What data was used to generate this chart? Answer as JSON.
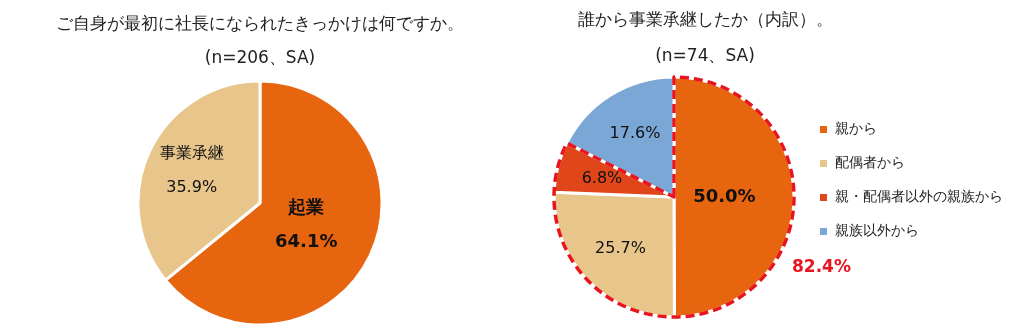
{
  "chart_data": [
    {
      "type": "pie",
      "title": "ご自身が最初に社長になられたきっかけは何ですか。",
      "subtitle": "(n=206、SA)",
      "categories": [
        "起業",
        "事業承継"
      ],
      "values": [
        64.1,
        35.9
      ],
      "colors": [
        "#e8650f",
        "#e8c58a"
      ],
      "value_labels": [
        "64.1%",
        "35.9%"
      ],
      "legend": false
    },
    {
      "type": "pie",
      "title": "誰から事業承継したか（内訳）。",
      "subtitle": "(n=74、SA)",
      "categories": [
        "親から",
        "配偶者から",
        "親・配偶者以外の親族から",
        "親族以外から"
      ],
      "values": [
        50.0,
        25.7,
        6.8,
        17.6
      ],
      "colors": [
        "#e8650f",
        "#e8c58a",
        "#e0461a",
        "#7ba7d6"
      ],
      "value_labels": [
        "50.0%",
        "25.7%",
        "6.8%",
        "17.6%"
      ],
      "legend": "right",
      "annotations": [
        "82.4%"
      ]
    }
  ]
}
